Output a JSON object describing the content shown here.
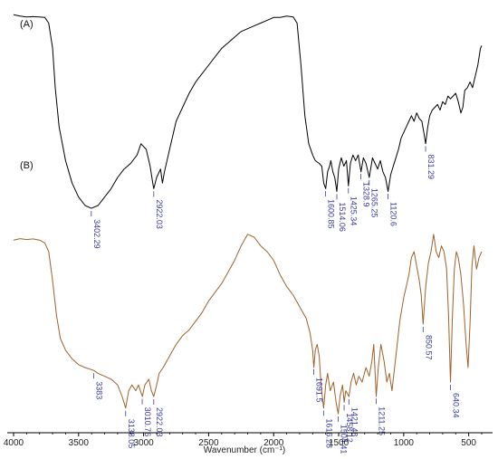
{
  "chart_data": {
    "type": "line",
    "xlabel": "Wavenumber (cm⁻¹)",
    "x_reversed": true,
    "xlim": [
      4000,
      400
    ],
    "x_ticks": [
      4000,
      3500,
      3000,
      2500,
      2000,
      1500,
      1000,
      500
    ],
    "x_tick_labels": [
      "4000",
      "3500",
      "3000",
      "2500",
      "2000",
      "1500",
      "1000",
      "500"
    ],
    "y_axis_shown": false,
    "grid": false,
    "series": [
      {
        "name": "(A)",
        "color": "#000000",
        "points": [
          [
            4000,
            0.98
          ],
          [
            3950,
            0.975
          ],
          [
            3900,
            0.972
          ],
          [
            3850,
            0.973
          ],
          [
            3800,
            0.972
          ],
          [
            3760,
            0.97
          ],
          [
            3730,
            0.95
          ],
          [
            3700,
            0.86
          ],
          [
            3680,
            0.72
          ],
          [
            3650,
            0.58
          ],
          [
            3600,
            0.46
          ],
          [
            3550,
            0.38
          ],
          [
            3500,
            0.33
          ],
          [
            3450,
            0.3
          ],
          [
            3402,
            0.29
          ],
          [
            3350,
            0.3
          ],
          [
            3300,
            0.33
          ],
          [
            3250,
            0.36
          ],
          [
            3200,
            0.4
          ],
          [
            3150,
            0.43
          ],
          [
            3100,
            0.45
          ],
          [
            3050,
            0.48
          ],
          [
            3020,
            0.52
          ],
          [
            2980,
            0.5
          ],
          [
            2950,
            0.44
          ],
          [
            2930,
            0.38
          ],
          [
            2922,
            0.36
          ],
          [
            2900,
            0.4
          ],
          [
            2870,
            0.43
          ],
          [
            2855,
            0.38
          ],
          [
            2840,
            0.42
          ],
          [
            2800,
            0.5
          ],
          [
            2750,
            0.6
          ],
          [
            2700,
            0.65
          ],
          [
            2650,
            0.7
          ],
          [
            2600,
            0.74
          ],
          [
            2550,
            0.77
          ],
          [
            2500,
            0.8
          ],
          [
            2450,
            0.83
          ],
          [
            2400,
            0.86
          ],
          [
            2350,
            0.88
          ],
          [
            2300,
            0.9
          ],
          [
            2250,
            0.92
          ],
          [
            2200,
            0.93
          ],
          [
            2150,
            0.94
          ],
          [
            2100,
            0.95
          ],
          [
            2050,
            0.96
          ],
          [
            2000,
            0.97
          ],
          [
            1950,
            0.97
          ],
          [
            1900,
            0.975
          ],
          [
            1850,
            0.972
          ],
          [
            1820,
            0.95
          ],
          [
            1790,
            0.8
          ],
          [
            1760,
            0.62
          ],
          [
            1730,
            0.52
          ],
          [
            1700,
            0.48
          ],
          [
            1680,
            0.46
          ],
          [
            1650,
            0.45
          ],
          [
            1630,
            0.44
          ],
          [
            1615,
            0.38
          ],
          [
            1600,
            0.36
          ],
          [
            1585,
            0.42
          ],
          [
            1570,
            0.44
          ],
          [
            1560,
            0.46
          ],
          [
            1545,
            0.42
          ],
          [
            1530,
            0.4
          ],
          [
            1514,
            0.35
          ],
          [
            1500,
            0.43
          ],
          [
            1480,
            0.47
          ],
          [
            1460,
            0.44
          ],
          [
            1440,
            0.46
          ],
          [
            1425,
            0.37
          ],
          [
            1410,
            0.45
          ],
          [
            1390,
            0.48
          ],
          [
            1370,
            0.46
          ],
          [
            1350,
            0.48
          ],
          [
            1328,
            0.42
          ],
          [
            1310,
            0.47
          ],
          [
            1290,
            0.45
          ],
          [
            1265,
            0.4
          ],
          [
            1240,
            0.47
          ],
          [
            1220,
            0.45
          ],
          [
            1200,
            0.43
          ],
          [
            1180,
            0.46
          ],
          [
            1160,
            0.42
          ],
          [
            1140,
            0.4
          ],
          [
            1120,
            0.35
          ],
          [
            1100,
            0.41
          ],
          [
            1080,
            0.44
          ],
          [
            1060,
            0.47
          ],
          [
            1040,
            0.5
          ],
          [
            1020,
            0.54
          ],
          [
            1000,
            0.56
          ],
          [
            980,
            0.58
          ],
          [
            960,
            0.6
          ],
          [
            940,
            0.62
          ],
          [
            920,
            0.6
          ],
          [
            900,
            0.63
          ],
          [
            880,
            0.61
          ],
          [
            860,
            0.6
          ],
          [
            845,
            0.56
          ],
          [
            831,
            0.52
          ],
          [
            815,
            0.58
          ],
          [
            800,
            0.62
          ],
          [
            780,
            0.64
          ],
          [
            760,
            0.65
          ],
          [
            740,
            0.66
          ],
          [
            720,
            0.64
          ],
          [
            700,
            0.67
          ],
          [
            680,
            0.66
          ],
          [
            660,
            0.69
          ],
          [
            640,
            0.68
          ],
          [
            620,
            0.69
          ],
          [
            600,
            0.7
          ],
          [
            580,
            0.67
          ],
          [
            560,
            0.63
          ],
          [
            545,
            0.65
          ],
          [
            530,
            0.71
          ],
          [
            510,
            0.72
          ],
          [
            490,
            0.74
          ],
          [
            470,
            0.72
          ],
          [
            450,
            0.76
          ],
          [
            430,
            0.8
          ],
          [
            410,
            0.86
          ],
          [
            400,
            0.87
          ]
        ],
        "peak_labels": [
          {
            "x": 3402.29,
            "text": "3402.29"
          },
          {
            "x": 2922.03,
            "text": "2922.03"
          },
          {
            "x": 1600.85,
            "text": "1600.85"
          },
          {
            "x": 1514.06,
            "text": "1514.06"
          },
          {
            "x": 1425.34,
            "text": "1425.34"
          },
          {
            "x": 1328.9,
            "text": "1328.9"
          },
          {
            "x": 1265.25,
            "text": "1265.25"
          },
          {
            "x": 1120.6,
            "text": "1120.6"
          },
          {
            "x": 831.29,
            "text": "831.29"
          }
        ]
      },
      {
        "name": "(B)",
        "color": "#a0612a",
        "points": [
          [
            4000,
            0.64
          ],
          [
            3950,
            0.645
          ],
          [
            3900,
            0.642
          ],
          [
            3850,
            0.644
          ],
          [
            3800,
            0.64
          ],
          [
            3760,
            0.63
          ],
          [
            3730,
            0.6
          ],
          [
            3700,
            0.5
          ],
          [
            3670,
            0.38
          ],
          [
            3640,
            0.3
          ],
          [
            3600,
            0.26
          ],
          [
            3550,
            0.23
          ],
          [
            3500,
            0.21
          ],
          [
            3450,
            0.2
          ],
          [
            3383,
            0.19
          ],
          [
            3350,
            0.18
          ],
          [
            3300,
            0.17
          ],
          [
            3250,
            0.16
          ],
          [
            3200,
            0.14
          ],
          [
            3165,
            0.1
          ],
          [
            3138,
            0.06
          ],
          [
            3115,
            0.12
          ],
          [
            3090,
            0.14
          ],
          [
            3060,
            0.12
          ],
          [
            3040,
            0.14
          ],
          [
            3010,
            0.1
          ],
          [
            2990,
            0.14
          ],
          [
            2960,
            0.16
          ],
          [
            2940,
            0.12
          ],
          [
            2922,
            0.1
          ],
          [
            2900,
            0.14
          ],
          [
            2880,
            0.18
          ],
          [
            2850,
            0.2
          ],
          [
            2800,
            0.24
          ],
          [
            2750,
            0.28
          ],
          [
            2700,
            0.31
          ],
          [
            2650,
            0.33
          ],
          [
            2600,
            0.36
          ],
          [
            2550,
            0.39
          ],
          [
            2500,
            0.43
          ],
          [
            2450,
            0.46
          ],
          [
            2400,
            0.49
          ],
          [
            2350,
            0.53
          ],
          [
            2300,
            0.57
          ],
          [
            2250,
            0.62
          ],
          [
            2200,
            0.66
          ],
          [
            2150,
            0.65
          ],
          [
            2100,
            0.62
          ],
          [
            2050,
            0.6
          ],
          [
            2000,
            0.57
          ],
          [
            1950,
            0.52
          ],
          [
            1900,
            0.48
          ],
          [
            1850,
            0.45
          ],
          [
            1800,
            0.41
          ],
          [
            1750,
            0.37
          ],
          [
            1720,
            0.32
          ],
          [
            1700,
            0.26
          ],
          [
            1691,
            0.2
          ],
          [
            1680,
            0.26
          ],
          [
            1665,
            0.28
          ],
          [
            1650,
            0.24
          ],
          [
            1635,
            0.14
          ],
          [
            1616,
            0.06
          ],
          [
            1600,
            0.14
          ],
          [
            1585,
            0.18
          ],
          [
            1565,
            0.12
          ],
          [
            1540,
            0.15
          ],
          [
            1520,
            0.08
          ],
          [
            1504,
            0.04
          ],
          [
            1490,
            0.1
          ],
          [
            1470,
            0.14
          ],
          [
            1458,
            0.08
          ],
          [
            1445,
            0.12
          ],
          [
            1421,
            0.1
          ],
          [
            1405,
            0.15
          ],
          [
            1385,
            0.18
          ],
          [
            1365,
            0.14
          ],
          [
            1345,
            0.17
          ],
          [
            1320,
            0.15
          ],
          [
            1290,
            0.2
          ],
          [
            1265,
            0.17
          ],
          [
            1245,
            0.22
          ],
          [
            1230,
            0.28
          ],
          [
            1211,
            0.1
          ],
          [
            1195,
            0.2
          ],
          [
            1175,
            0.28
          ],
          [
            1150,
            0.22
          ],
          [
            1130,
            0.15
          ],
          [
            1110,
            0.18
          ],
          [
            1090,
            0.12
          ],
          [
            1070,
            0.2
          ],
          [
            1050,
            0.28
          ],
          [
            1030,
            0.36
          ],
          [
            1000,
            0.44
          ],
          [
            980,
            0.48
          ],
          [
            960,
            0.52
          ],
          [
            940,
            0.58
          ],
          [
            920,
            0.6
          ],
          [
            900,
            0.55
          ],
          [
            880,
            0.5
          ],
          [
            865,
            0.45
          ],
          [
            850.57,
            0.35
          ],
          [
            830,
            0.48
          ],
          [
            810,
            0.56
          ],
          [
            790,
            0.6
          ],
          [
            770,
            0.66
          ],
          [
            750,
            0.6
          ],
          [
            730,
            0.58
          ],
          [
            710,
            0.62
          ],
          [
            690,
            0.6
          ],
          [
            670,
            0.54
          ],
          [
            655,
            0.38
          ],
          [
            640.34,
            0.15
          ],
          [
            625,
            0.38
          ],
          [
            610,
            0.54
          ],
          [
            595,
            0.6
          ],
          [
            580,
            0.58
          ],
          [
            560,
            0.52
          ],
          [
            540,
            0.42
          ],
          [
            520,
            0.28
          ],
          [
            505,
            0.2
          ],
          [
            490,
            0.35
          ],
          [
            475,
            0.55
          ],
          [
            460,
            0.62
          ],
          [
            440,
            0.54
          ],
          [
            420,
            0.58
          ],
          [
            400,
            0.6
          ]
        ],
        "peak_labels": [
          {
            "x": 3383,
            "text": "3383"
          },
          {
            "x": 3138.05,
            "text": "3138.05"
          },
          {
            "x": 3010.76,
            "text": "3010.76"
          },
          {
            "x": 2922.03,
            "text": "2922.03"
          },
          {
            "x": 1691.5,
            "text": "1691.5"
          },
          {
            "x": 1616.28,
            "text": "1616.28"
          },
          {
            "x": 1504.41,
            "text": "1504.41"
          },
          {
            "x": 1458.12,
            "text": "1458.12"
          },
          {
            "x": 1421.48,
            "text": "1421.48"
          },
          {
            "x": 1211.25,
            "text": "1211.25"
          },
          {
            "x": 850.57,
            "text": "850.57"
          },
          {
            "x": 640.34,
            "text": "640.34"
          }
        ]
      }
    ]
  }
}
